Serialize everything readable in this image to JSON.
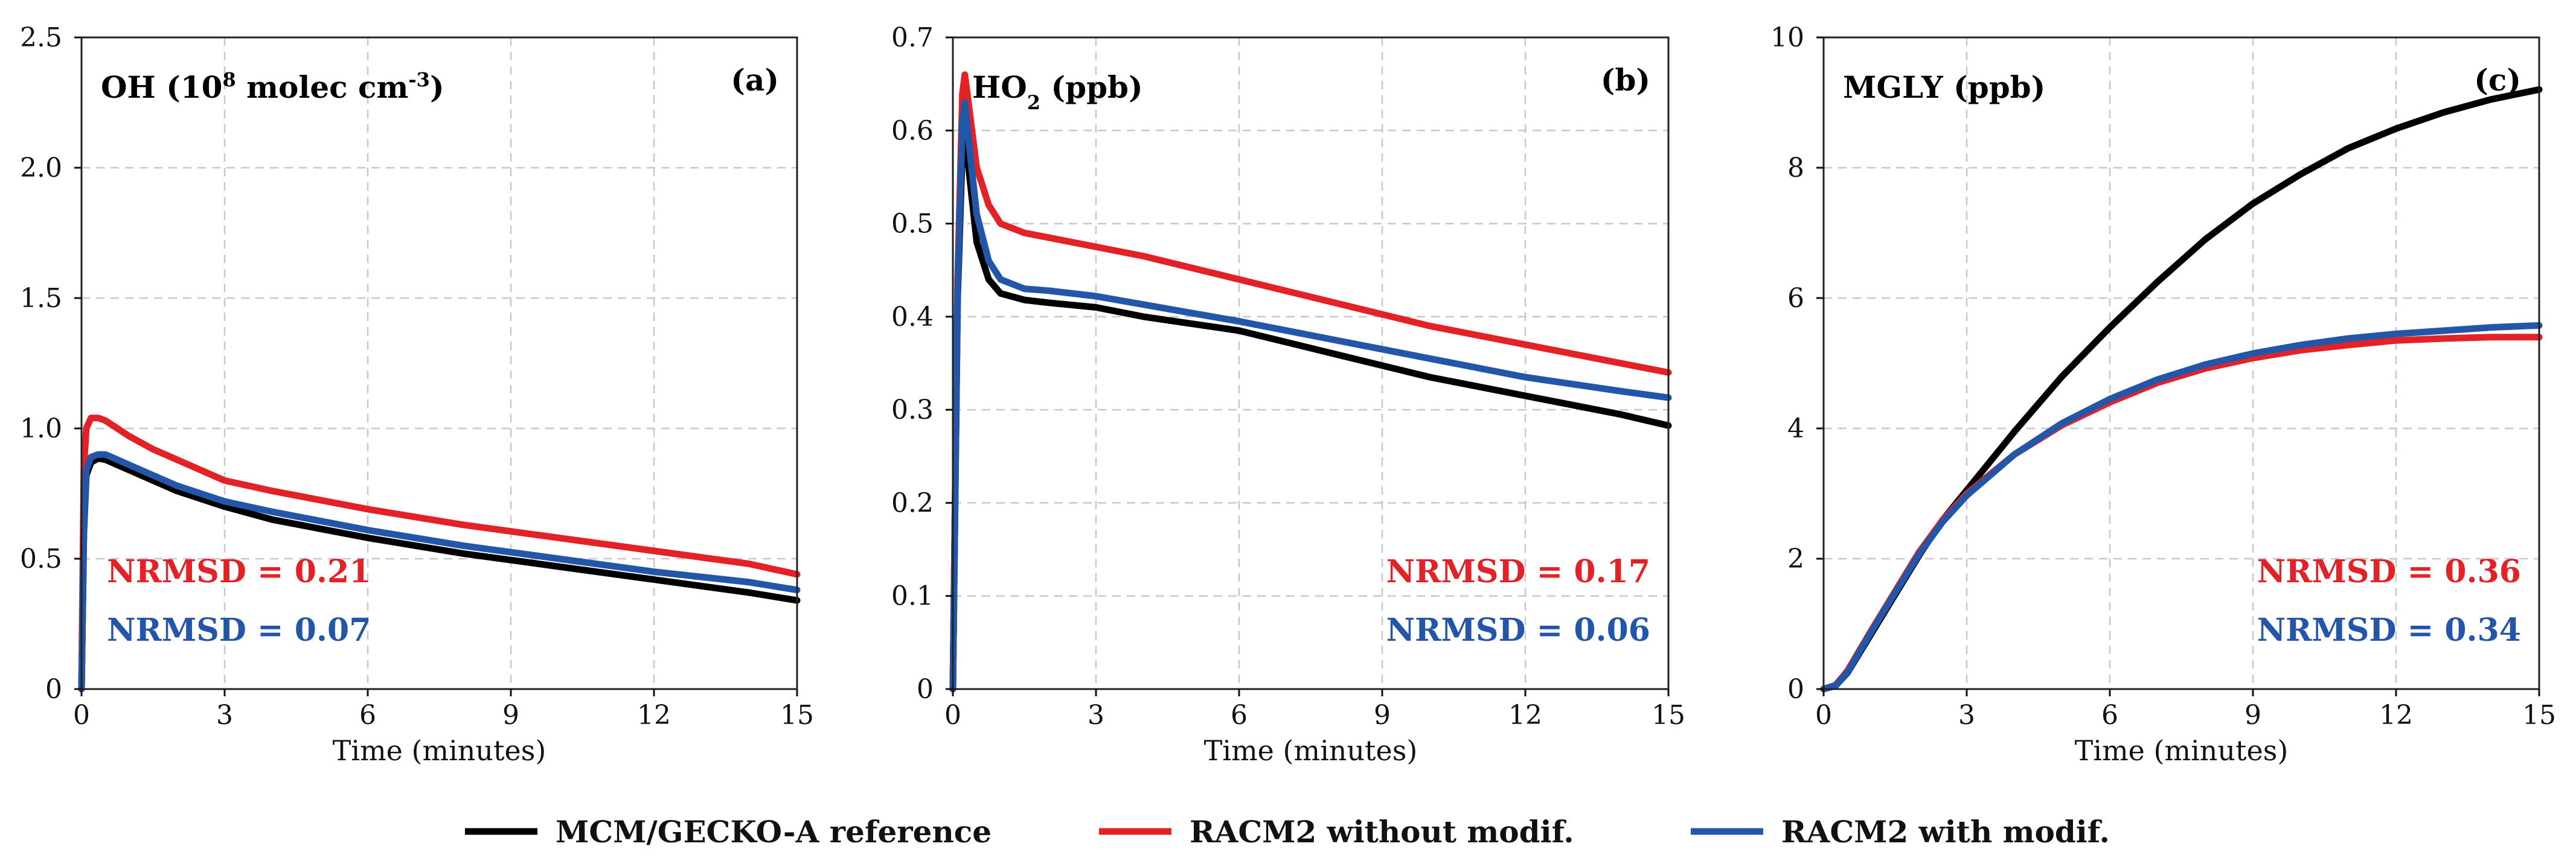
{
  "colors": {
    "reference": "#000000",
    "without_modif": "#e32227",
    "with_modif": "#2356a8"
  },
  "legend": {
    "entries": [
      {
        "label": "MCM/GECKO-A reference",
        "color": "#000000"
      },
      {
        "label": "RACM2 without modif.",
        "color": "#e32227"
      },
      {
        "label": "RACM2 with modif.",
        "color": "#2356a8"
      }
    ]
  },
  "chart_data": [
    {
      "type": "line",
      "panel_letter": "(a)",
      "title": "OH (10⁸ molec cm⁻³)",
      "xlabel": "Time (minutes)",
      "ylabel": "",
      "xlim": [
        0,
        15
      ],
      "ylim": [
        0,
        2.5
      ],
      "xticks": [
        0,
        3,
        6,
        9,
        12,
        15
      ],
      "yticks": [
        0,
        0.5,
        1.0,
        1.5,
        2.0,
        2.5
      ],
      "ytick_labels": [
        "0",
        "0.5",
        "1.0",
        "1.5",
        "2.0",
        "2.5"
      ],
      "grid": true,
      "nrmsd": [
        {
          "label": "NRMSD = 0.21",
          "color": "#e32227"
        },
        {
          "label": "NRMSD = 0.07",
          "color": "#2356a8"
        }
      ],
      "series": [
        {
          "key": "reference",
          "color": "#000000",
          "x": [
            0,
            0.05,
            0.1,
            0.2,
            0.35,
            0.5,
            0.75,
            1,
            1.5,
            2,
            3,
            4,
            6,
            8,
            10,
            12,
            14,
            15
          ],
          "y": [
            0,
            0.6,
            0.82,
            0.87,
            0.885,
            0.88,
            0.86,
            0.84,
            0.8,
            0.76,
            0.7,
            0.65,
            0.58,
            0.52,
            0.47,
            0.42,
            0.37,
            0.34
          ]
        },
        {
          "key": "without_modif",
          "color": "#e32227",
          "x": [
            0,
            0.05,
            0.1,
            0.2,
            0.35,
            0.5,
            0.75,
            1,
            1.5,
            2,
            3,
            4,
            6,
            8,
            10,
            12,
            14,
            15
          ],
          "y": [
            0,
            0.85,
            1.0,
            1.04,
            1.04,
            1.03,
            1.0,
            0.97,
            0.92,
            0.88,
            0.8,
            0.76,
            0.69,
            0.63,
            0.58,
            0.53,
            0.48,
            0.44
          ]
        },
        {
          "key": "with_modif",
          "color": "#2356a8",
          "x": [
            0,
            0.05,
            0.1,
            0.2,
            0.35,
            0.5,
            0.75,
            1,
            1.5,
            2,
            3,
            4,
            6,
            8,
            10,
            12,
            14,
            15
          ],
          "y": [
            0,
            0.62,
            0.84,
            0.89,
            0.9,
            0.9,
            0.88,
            0.86,
            0.82,
            0.78,
            0.72,
            0.68,
            0.61,
            0.55,
            0.5,
            0.45,
            0.41,
            0.38
          ]
        }
      ]
    },
    {
      "type": "line",
      "panel_letter": "(b)",
      "title": "HO₂ (ppb)",
      "xlabel": "Time (minutes)",
      "ylabel": "",
      "xlim": [
        0,
        15
      ],
      "ylim": [
        0,
        0.7
      ],
      "xticks": [
        0,
        3,
        6,
        9,
        12,
        15
      ],
      "yticks": [
        0,
        0.1,
        0.2,
        0.3,
        0.4,
        0.5,
        0.6,
        0.7
      ],
      "ytick_labels": [
        "0",
        "0.1",
        "0.2",
        "0.3",
        "0.4",
        "0.5",
        "0.6",
        "0.7"
      ],
      "grid": true,
      "nrmsd": [
        {
          "label": "NRMSD = 0.17",
          "color": "#e32227"
        },
        {
          "label": "NRMSD = 0.06",
          "color": "#2356a8"
        }
      ],
      "series": [
        {
          "key": "reference",
          "color": "#000000",
          "x": [
            0,
            0.1,
            0.2,
            0.25,
            0.35,
            0.5,
            0.75,
            1,
            1.5,
            2,
            3,
            4,
            6,
            8,
            10,
            12,
            14,
            15
          ],
          "y": [
            0,
            0.42,
            0.58,
            0.6,
            0.55,
            0.48,
            0.44,
            0.425,
            0.418,
            0.415,
            0.41,
            0.4,
            0.385,
            0.36,
            0.335,
            0.315,
            0.295,
            0.283
          ]
        },
        {
          "key": "without_modif",
          "color": "#e32227",
          "x": [
            0,
            0.1,
            0.2,
            0.25,
            0.35,
            0.5,
            0.75,
            1,
            1.5,
            2,
            3,
            4,
            6,
            8,
            10,
            12,
            14,
            15
          ],
          "y": [
            0,
            0.44,
            0.64,
            0.66,
            0.62,
            0.56,
            0.52,
            0.5,
            0.49,
            0.485,
            0.475,
            0.465,
            0.44,
            0.415,
            0.39,
            0.37,
            0.35,
            0.34
          ]
        },
        {
          "key": "with_modif",
          "color": "#2356a8",
          "x": [
            0,
            0.1,
            0.2,
            0.25,
            0.35,
            0.5,
            0.75,
            1,
            1.5,
            2,
            3,
            4,
            6,
            8,
            10,
            12,
            14,
            15
          ],
          "y": [
            0,
            0.43,
            0.61,
            0.63,
            0.58,
            0.51,
            0.46,
            0.44,
            0.43,
            0.428,
            0.422,
            0.413,
            0.395,
            0.375,
            0.355,
            0.335,
            0.32,
            0.313
          ]
        }
      ]
    },
    {
      "type": "line",
      "panel_letter": "(c)",
      "title": "MGLY (ppb)",
      "xlabel": "Time (minutes)",
      "ylabel": "",
      "xlim": [
        0,
        15
      ],
      "ylim": [
        0,
        10
      ],
      "xticks": [
        0,
        3,
        6,
        9,
        12,
        15
      ],
      "yticks": [
        0,
        2,
        4,
        6,
        8,
        10
      ],
      "ytick_labels": [
        "0",
        "2",
        "4",
        "6",
        "8",
        "10"
      ],
      "grid": true,
      "nrmsd": [
        {
          "label": "NRMSD = 0.36",
          "color": "#e32227"
        },
        {
          "label": "NRMSD = 0.34",
          "color": "#2356a8"
        }
      ],
      "series": [
        {
          "key": "reference",
          "color": "#000000",
          "x": [
            0,
            0.25,
            0.5,
            1,
            1.5,
            2,
            2.5,
            3,
            4,
            5,
            6,
            7,
            8,
            9,
            10,
            11,
            12,
            13,
            14,
            15
          ],
          "y": [
            0,
            0.05,
            0.25,
            0.85,
            1.45,
            2.05,
            2.6,
            3.05,
            3.95,
            4.8,
            5.55,
            6.25,
            6.9,
            7.45,
            7.9,
            8.3,
            8.6,
            8.85,
            9.05,
            9.2
          ]
        },
        {
          "key": "without_modif",
          "color": "#e32227",
          "x": [
            0,
            0.25,
            0.5,
            1,
            1.5,
            2,
            2.5,
            3,
            4,
            5,
            6,
            7,
            8,
            9,
            10,
            11,
            12,
            13,
            14,
            15
          ],
          "y": [
            0,
            0.06,
            0.28,
            0.9,
            1.5,
            2.1,
            2.6,
            3.0,
            3.6,
            4.05,
            4.4,
            4.7,
            4.92,
            5.08,
            5.2,
            5.28,
            5.35,
            5.38,
            5.4,
            5.4
          ]
        },
        {
          "key": "with_modif",
          "color": "#2356a8",
          "x": [
            0,
            0.25,
            0.5,
            1,
            1.5,
            2,
            2.5,
            3,
            4,
            5,
            6,
            7,
            8,
            9,
            10,
            11,
            12,
            13,
            14,
            15
          ],
          "y": [
            0,
            0.05,
            0.26,
            0.88,
            1.48,
            2.07,
            2.57,
            2.97,
            3.6,
            4.08,
            4.45,
            4.75,
            4.98,
            5.15,
            5.28,
            5.38,
            5.45,
            5.5,
            5.55,
            5.58
          ]
        }
      ]
    }
  ]
}
